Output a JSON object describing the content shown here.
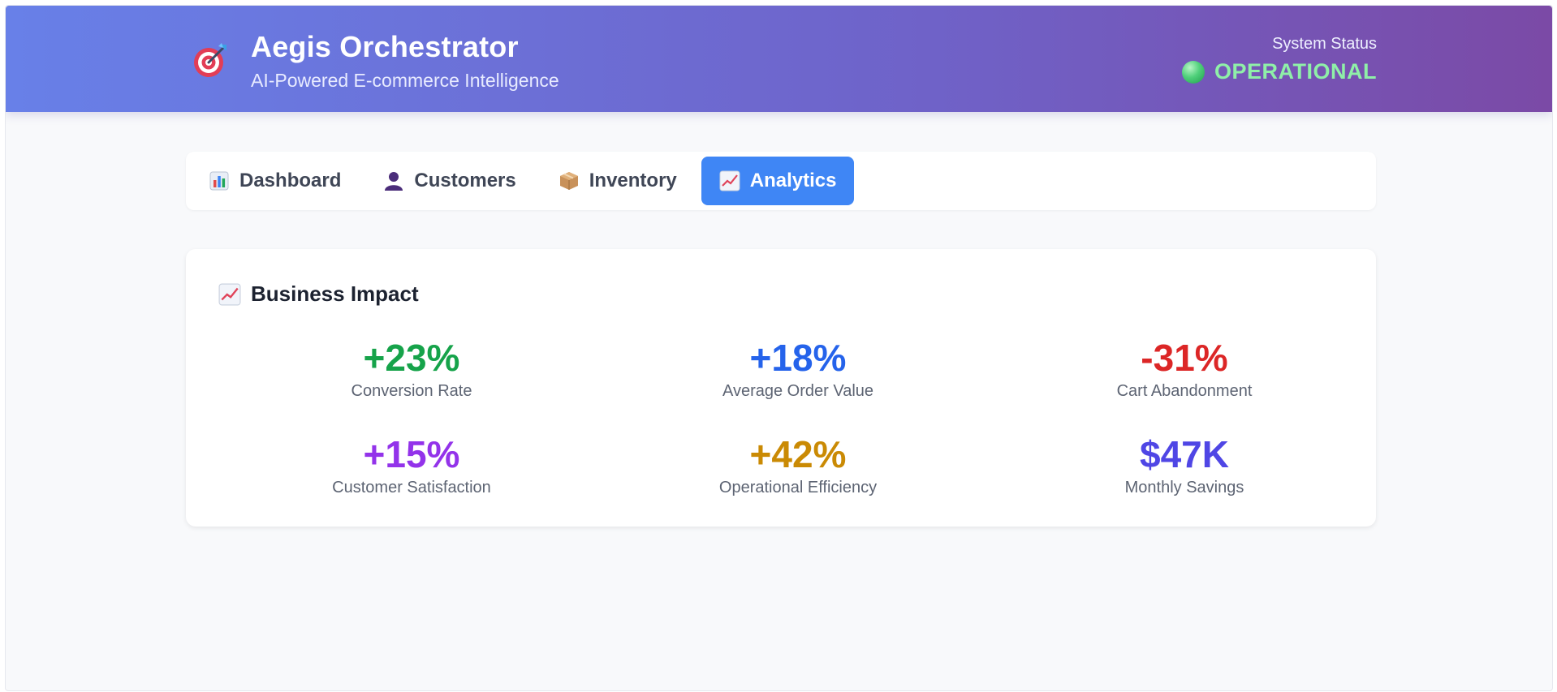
{
  "app": {
    "title": "Aegis Orchestrator",
    "subtitle": "AI-Powered E-commerce Intelligence",
    "brand_icon": "target-icon"
  },
  "status": {
    "label": "System Status",
    "value": "OPERATIONAL",
    "color": "#8ff0a8"
  },
  "tabs": [
    {
      "label": "Dashboard",
      "icon": "bar-chart-icon",
      "active": false
    },
    {
      "label": "Customers",
      "icon": "user-icon",
      "active": false
    },
    {
      "label": "Inventory",
      "icon": "package-icon",
      "active": false
    },
    {
      "label": "Analytics",
      "icon": "trend-up-icon",
      "active": true
    }
  ],
  "business_impact": {
    "title": "Business Impact",
    "icon": "trend-up-icon",
    "metrics": [
      {
        "value": "+23%",
        "label": "Conversion Rate",
        "color": "#16a34a"
      },
      {
        "value": "+18%",
        "label": "Average Order Value",
        "color": "#2563eb"
      },
      {
        "value": "-31%",
        "label": "Cart Abandonment",
        "color": "#dc2626"
      },
      {
        "value": "+15%",
        "label": "Customer Satisfaction",
        "color": "#9333ea"
      },
      {
        "value": "+42%",
        "label": "Operational Efficiency",
        "color": "#ca8a04"
      },
      {
        "value": "$47K",
        "label": "Monthly Savings",
        "color": "#4f46e5"
      }
    ]
  },
  "colors": {
    "header_start": "#6880e8",
    "header_end": "#7b4aa6",
    "active_tab": "#3f86f5"
  }
}
